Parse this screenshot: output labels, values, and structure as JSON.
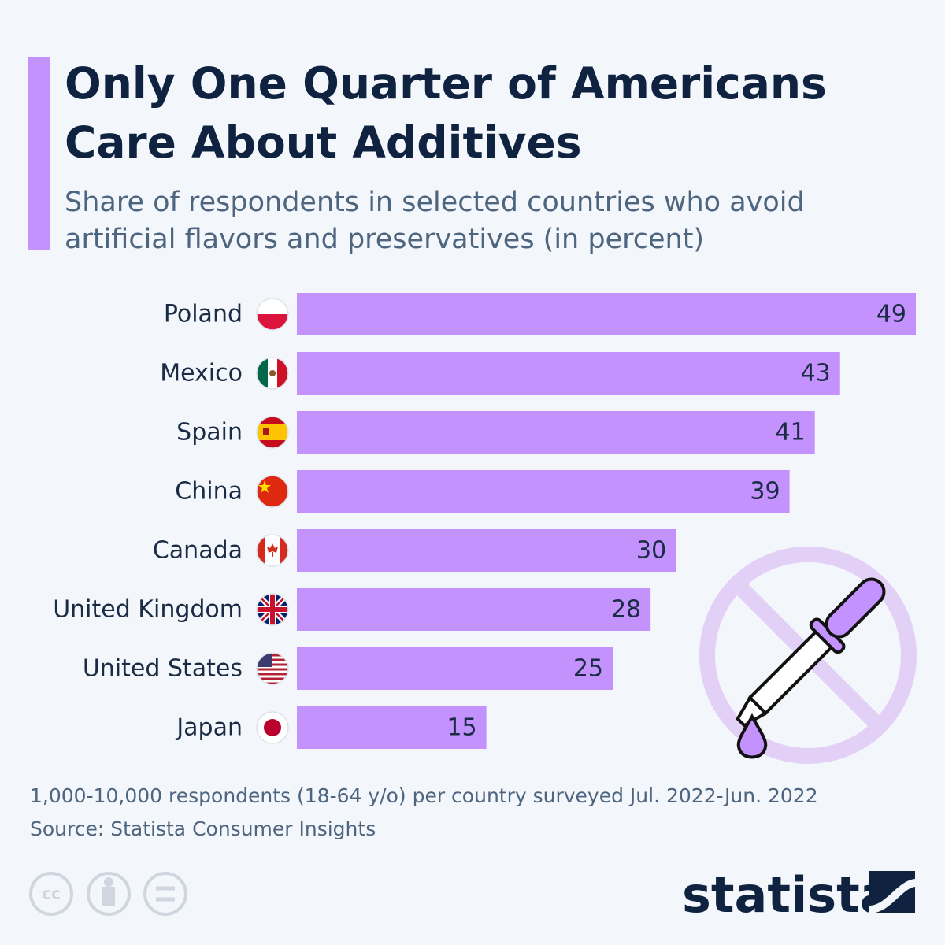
{
  "chart_data": {
    "type": "bar",
    "orientation": "horizontal",
    "title": "Only One Quarter of Americans Care About Additives",
    "subtitle": "Share of respondents in selected countries who avoid artificial flavors and preservatives (in percent)",
    "categories": [
      "Poland",
      "Mexico",
      "Spain",
      "China",
      "Canada",
      "United Kingdom",
      "United States",
      "Japan"
    ],
    "values": [
      49,
      43,
      41,
      39,
      30,
      28,
      25,
      15
    ],
    "color": "#c392fd",
    "note": "1,000-10,000 respondents (18-64 y/o) per country surveyed Jul. 2022-Jun. 2022",
    "source": "Source: Statista Consumer Insights"
  },
  "brand": "statista"
}
